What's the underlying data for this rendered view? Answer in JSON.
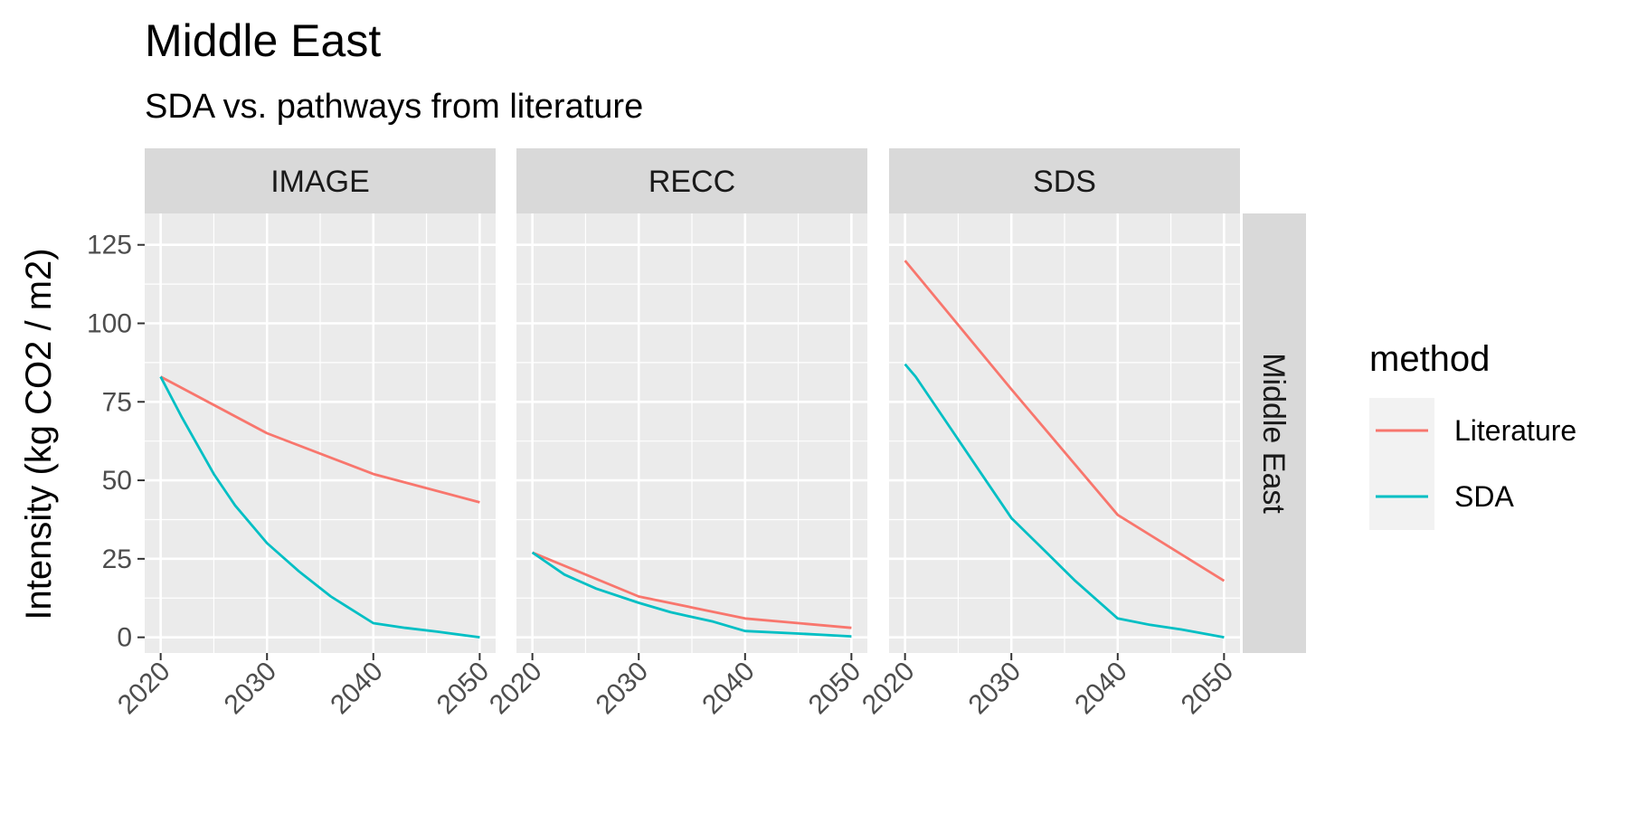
{
  "chart_data": {
    "type": "line",
    "title": "Middle East",
    "subtitle": "SDA vs. pathways from literature",
    "ylabel": "Intensity (kg CO2 / m2)",
    "xlabel": "",
    "ylim": [
      -5,
      135
    ],
    "xlim": [
      2018.5,
      2051.5
    ],
    "x_ticks": [
      2020,
      2030,
      2040,
      2050
    ],
    "y_ticks": [
      0,
      25,
      50,
      75,
      100,
      125
    ],
    "grid": true,
    "row_strip": "Middle East",
    "legend": {
      "title": "method",
      "position": "right",
      "entries": [
        {
          "name": "Literature",
          "color": "#F8766D"
        },
        {
          "name": "SDA",
          "color": "#00BFC4"
        }
      ]
    },
    "panels": [
      {
        "label": "IMAGE",
        "series": [
          {
            "name": "Literature",
            "color": "#F8766D",
            "x": [
              2020,
              2030,
              2040,
              2050
            ],
            "y": [
              83,
              65,
              52,
              43
            ]
          },
          {
            "name": "SDA",
            "color": "#00BFC4",
            "x": [
              2020,
              2022,
              2025,
              2027,
              2030,
              2033,
              2036,
              2040,
              2043,
              2046,
              2050
            ],
            "y": [
              83,
              70,
              52,
              42,
              30,
              21,
              13,
              4.5,
              3,
              1.8,
              0
            ]
          }
        ]
      },
      {
        "label": "RECC",
        "series": [
          {
            "name": "Literature",
            "color": "#F8766D",
            "x": [
              2020,
              2030,
              2040,
              2050
            ],
            "y": [
              27,
              13,
              6,
              3
            ]
          },
          {
            "name": "SDA",
            "color": "#00BFC4",
            "x": [
              2020,
              2023,
              2026,
              2030,
              2033,
              2037,
              2040,
              2045,
              2050
            ],
            "y": [
              27,
              20,
              15.5,
              11,
              8,
              5,
              2,
              1.2,
              0.3
            ]
          }
        ]
      },
      {
        "label": "SDS",
        "series": [
          {
            "name": "Literature",
            "color": "#F8766D",
            "x": [
              2020,
              2030,
              2040,
              2050
            ],
            "y": [
              120,
              79,
              39,
              18
            ]
          },
          {
            "name": "SDA",
            "color": "#00BFC4",
            "x": [
              2020,
              2021,
              2024,
              2027,
              2030,
              2033,
              2036,
              2040,
              2043,
              2046,
              2050
            ],
            "y": [
              87,
              83,
              68,
              53,
              38,
              28,
              18,
              6,
              4,
              2.5,
              0
            ]
          }
        ]
      }
    ]
  }
}
